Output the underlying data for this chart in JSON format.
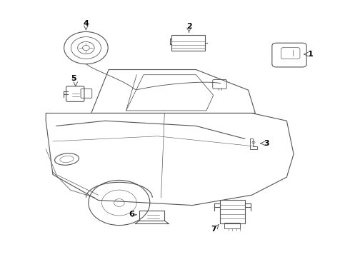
{
  "background_color": "#ffffff",
  "line_color": "#555555",
  "label_color": "#000000",
  "lw": 0.8
}
